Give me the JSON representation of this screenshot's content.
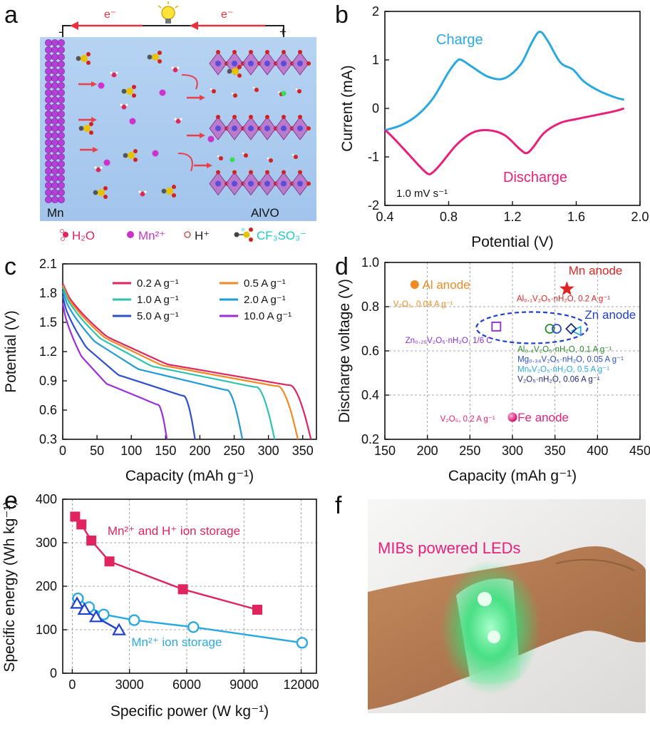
{
  "panels": {
    "a": {
      "label": "a",
      "electron_left": "e⁻",
      "electron_right": "e⁻",
      "minus": "-",
      "plus": "+",
      "electrode_left": "Mn",
      "electrode_right": "AlVO",
      "legend": [
        {
          "name": "water-icon",
          "text": "H₂O",
          "color": "#e0245e"
        },
        {
          "name": "mn-ion-icon",
          "text": "Mn²⁺",
          "color": "#cc33cc"
        },
        {
          "name": "proton-icon",
          "text": "H⁺",
          "color": "#222222"
        },
        {
          "name": "triflate-icon",
          "text": "CF₃SO₃⁻",
          "color": "#1ec8c8"
        }
      ]
    },
    "b": {
      "label": "b"
    },
    "c": {
      "label": "c"
    },
    "d": {
      "label": "d"
    },
    "e": {
      "label": "e"
    },
    "f": {
      "label": "f",
      "photo_caption": "MIBs powered LEDs",
      "caption_color": "#e8207a"
    }
  },
  "chart_data": [
    {
      "panel": "b",
      "type": "line",
      "xlabel": "Potential (V)",
      "ylabel": "Current (mA)",
      "xlim": [
        0.4,
        2.0
      ],
      "ylim": [
        -2,
        2
      ],
      "xticks": [
        0.4,
        0.8,
        1.2,
        1.6,
        2.0
      ],
      "yticks": [
        -2,
        -1,
        0,
        1,
        2
      ],
      "xtick_labels": [
        "0.4",
        "0.8",
        "1.2",
        "1.6",
        "2.0"
      ],
      "ytick_labels": [
        "-2",
        "-1",
        "0",
        "1",
        "2"
      ],
      "annotation": "1.0 mV s⁻¹",
      "series": [
        {
          "name": "Charge",
          "color": "#29a9e0",
          "x": [
            0.4,
            0.5,
            0.6,
            0.7,
            0.8,
            0.85,
            0.88,
            0.95,
            1.05,
            1.15,
            1.25,
            1.32,
            1.37,
            1.42,
            1.5,
            1.58,
            1.65,
            1.75,
            1.85,
            1.9
          ],
          "y": [
            -0.45,
            -0.35,
            -0.15,
            0.2,
            0.75,
            0.97,
            1.0,
            0.85,
            0.65,
            0.62,
            0.9,
            1.35,
            1.58,
            1.4,
            0.95,
            0.8,
            0.55,
            0.35,
            0.22,
            0.18
          ]
        },
        {
          "name": "Discharge",
          "color": "#e8207a",
          "x": [
            1.9,
            1.85,
            1.75,
            1.6,
            1.5,
            1.4,
            1.33,
            1.29,
            1.25,
            1.15,
            1.05,
            0.95,
            0.85,
            0.75,
            0.7,
            0.67,
            0.62,
            0.55,
            0.48,
            0.42,
            0.4
          ],
          "y": [
            0.0,
            -0.05,
            -0.12,
            -0.22,
            -0.3,
            -0.5,
            -0.8,
            -0.92,
            -0.85,
            -0.55,
            -0.45,
            -0.5,
            -0.75,
            -1.15,
            -1.32,
            -1.35,
            -1.2,
            -0.95,
            -0.7,
            -0.5,
            -0.45
          ]
        }
      ]
    },
    {
      "panel": "c",
      "type": "line",
      "xlabel": "Capacity (mAh g⁻¹)",
      "ylabel": "Potential (V)",
      "xlim": [
        0,
        370
      ],
      "ylim": [
        0.3,
        2.1
      ],
      "xticks": [
        0,
        50,
        100,
        150,
        200,
        250,
        300,
        350
      ],
      "yticks": [
        0.3,
        0.6,
        0.9,
        1.2,
        1.5,
        1.8,
        2.1
      ],
      "xtick_labels": [
        "0",
        "50",
        "100",
        "150",
        "200",
        "250",
        "300",
        "350"
      ],
      "ytick_labels": [
        "0.3",
        "0.6",
        "0.9",
        "1.2",
        "1.5",
        "1.8",
        "2.1"
      ],
      "series": [
        {
          "name": "0.2 A g⁻¹",
          "color": "#e0245e",
          "cap": 362,
          "v0": 1.9,
          "vp": 1.35
        },
        {
          "name": "0.5 A g⁻¹",
          "color": "#f08a24",
          "cap": 343,
          "v0": 1.88,
          "vp": 1.34
        },
        {
          "name": "1.0 A g⁻¹",
          "color": "#2ec4b0",
          "cap": 309,
          "v0": 1.86,
          "vp": 1.33
        },
        {
          "name": "2.0 A g⁻¹",
          "color": "#1f9ad6",
          "cap": 262,
          "v0": 1.82,
          "vp": 1.3
        },
        {
          "name": "5.0 A g⁻¹",
          "color": "#2e4fc9",
          "cap": 193,
          "v0": 1.77,
          "vp": 1.24
        },
        {
          "name": "10.0 A g⁻¹",
          "color": "#9a2fd8",
          "cap": 152,
          "v0": 1.7,
          "vp": 1.15
        }
      ]
    },
    {
      "panel": "d",
      "type": "scatter",
      "xlabel": "Capacity (mAh g⁻¹)",
      "ylabel": "Discharge voltage (V)",
      "xlim": [
        150,
        450
      ],
      "ylim": [
        0.2,
        1.0
      ],
      "xticks": [
        150,
        200,
        250,
        300,
        350,
        400,
        450
      ],
      "yticks": [
        0.2,
        0.4,
        0.6,
        0.8,
        1.0
      ],
      "xtick_labels": [
        "150",
        "200",
        "250",
        "300",
        "350",
        "400",
        "450"
      ],
      "ytick_labels": [
        "0.2",
        "0.4",
        "0.6",
        "0.8",
        "1.0"
      ],
      "points": [
        {
          "label": "Mn anode",
          "x": 364,
          "y": 0.88,
          "marker": "star",
          "color": "#e02424",
          "note": "Al₀.₁V₂O₅·nH₂O, 0.2 A g⁻¹"
        },
        {
          "label": "Al anode",
          "x": 185,
          "y": 0.9,
          "marker": "circle-filled",
          "color": "#f08a24",
          "note": "V₂O₅, 0.04 A g⁻¹"
        },
        {
          "label": "Fe anode",
          "x": 300,
          "y": 0.3,
          "marker": "sphere",
          "color": "#e8207a",
          "note": "V₂O₅, 0.2 A g⁻¹"
        },
        {
          "label": "",
          "x": 281,
          "y": 0.71,
          "marker": "square-open",
          "color": "#8a2be2",
          "note": "Zn₀.₂₅V₂O₅·nH₂O, 1/6 C"
        },
        {
          "label": "",
          "x": 344,
          "y": 0.7,
          "marker": "circle-open",
          "color": "#2a8a2a",
          "note": "Al₀.₄V₂O₅·nH₂O, 0.1 A g⁻¹"
        },
        {
          "label": "",
          "x": 352,
          "y": 0.7,
          "marker": "circle-open",
          "color": "#2a4fc9",
          "note": "Mg₀.₃₄V₂O₅·nH₂O, 0.05 A g⁻¹"
        },
        {
          "label": "",
          "x": 376,
          "y": 0.69,
          "marker": "triangle-left-open",
          "color": "#29a9e0",
          "note": "MnₓV₂O₅·nH₂O, 0.5 A g⁻¹"
        },
        {
          "label": "",
          "x": 369,
          "y": 0.7,
          "marker": "diamond-open",
          "color": "#1f2a7a",
          "note": "V₂O₅·nH₂O, 0.06 A g⁻¹"
        }
      ],
      "group_label": "Zn anode",
      "group_color": "#1f3fcf"
    },
    {
      "panel": "e",
      "type": "scatter",
      "xlabel": "Specific power (W kg⁻¹)",
      "ylabel": "Specific energy (Wh kg⁻¹)",
      "xlim": [
        -500,
        12800
      ],
      "ylim": [
        0,
        400
      ],
      "xticks": [
        0,
        3000,
        6000,
        9000,
        12000
      ],
      "yticks": [
        0,
        100,
        200,
        300,
        400
      ],
      "xtick_labels": [
        "0",
        "3000",
        "6000",
        "9000",
        "12000"
      ],
      "ytick_labels": [
        "0",
        "100",
        "200",
        "300",
        "400"
      ],
      "series": [
        {
          "name": "Mn²⁺ and H⁺ ion storage",
          "color": "#e0245e",
          "marker": "square-filled",
          "x": [
            150,
            480,
            1000,
            1950,
            5800,
            9700
          ],
          "y": [
            360,
            342,
            305,
            257,
            193,
            146
          ]
        },
        {
          "name": "Mn²⁺ ion storage",
          "color": "#29a9e0",
          "marker": "circle-open",
          "x": [
            300,
            880,
            1650,
            3250,
            6350,
            12050
          ],
          "y": [
            172,
            152,
            135,
            122,
            106,
            70
          ]
        },
        {
          "name": "",
          "color": "#1f3fcf",
          "marker": "triangle-open",
          "x": [
            250,
            640,
            1250,
            2450
          ],
          "y": [
            160,
            146,
            129,
            99
          ]
        }
      ]
    }
  ]
}
